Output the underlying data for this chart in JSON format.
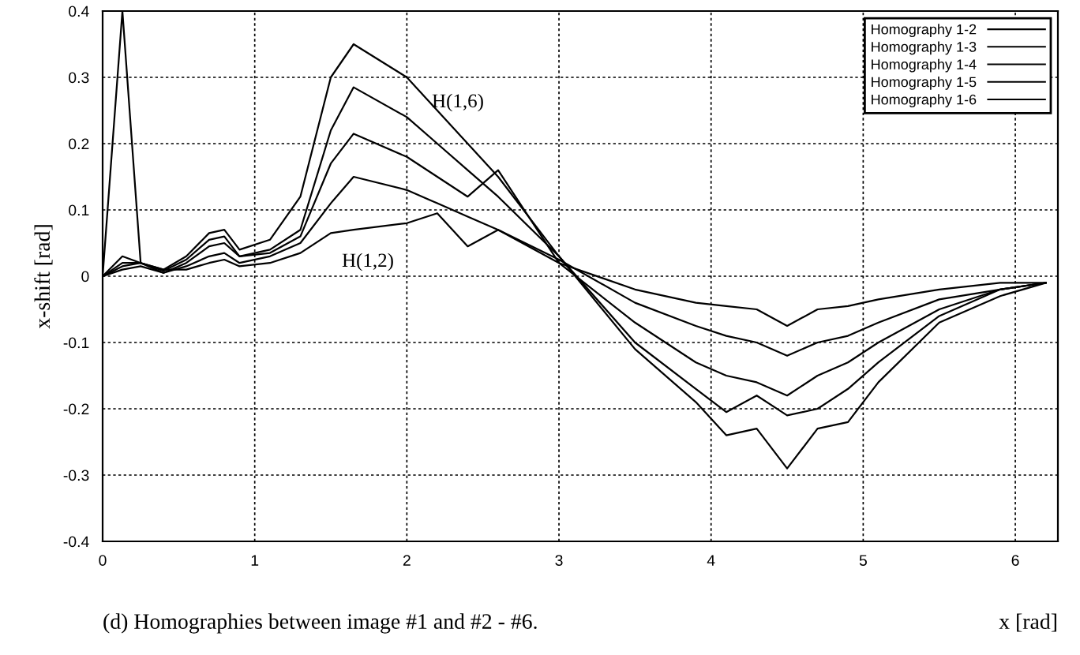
{
  "chart_data": {
    "type": "line",
    "xlabel": "x [rad]",
    "ylabel": "x-shift [rad]",
    "annotations": [
      "H(1,6)",
      "H(1,2)",
      "(d) Homographies between image #1 and #2 - #6."
    ],
    "x": [
      0,
      0.13,
      0.25,
      0.4,
      0.55,
      0.7,
      0.8,
      0.9,
      1.1,
      1.3,
      1.5,
      1.65,
      2.0,
      2.2,
      2.4,
      2.6,
      3.0,
      3.5,
      3.9,
      4.1,
      4.3,
      4.5,
      4.7,
      4.9,
      5.1,
      5.5,
      5.9,
      6.2
    ],
    "series": [
      {
        "name": "Homography 1-2",
        "color": "#000000",
        "values": [
          0,
          0.4,
          0.02,
          0.01,
          0.01,
          0.02,
          0.025,
          0.015,
          0.02,
          0.035,
          0.065,
          0.07,
          0.08,
          0.095,
          0.045,
          0.07,
          0.02,
          -0.02,
          -0.04,
          -0.045,
          -0.05,
          -0.075,
          -0.05,
          -0.045,
          -0.035,
          -0.02,
          -0.01,
          -0.01
        ]
      },
      {
        "name": "Homography 1-3",
        "color": "#000000",
        "values": [
          0,
          0.01,
          0.015,
          0.005,
          0.015,
          0.03,
          0.035,
          0.02,
          0.03,
          0.05,
          0.11,
          0.15,
          0.13,
          0.11,
          0.09,
          0.07,
          0.025,
          -0.04,
          -0.075,
          -0.09,
          -0.1,
          -0.12,
          -0.1,
          -0.09,
          -0.07,
          -0.035,
          -0.02,
          -0.01
        ]
      },
      {
        "name": "Homography 1-4",
        "color": "#000000",
        "values": [
          0,
          0.015,
          0.02,
          0.005,
          0.02,
          0.045,
          0.05,
          0.03,
          0.035,
          0.06,
          0.17,
          0.215,
          0.18,
          0.15,
          0.12,
          0.16,
          0.02,
          -0.07,
          -0.13,
          -0.15,
          -0.16,
          -0.18,
          -0.15,
          -0.13,
          -0.1,
          -0.05,
          -0.02,
          -0.01
        ]
      },
      {
        "name": "Homography 1-5",
        "color": "#000000",
        "values": [
          0,
          0.02,
          0.02,
          0.008,
          0.025,
          0.055,
          0.06,
          0.03,
          0.04,
          0.07,
          0.22,
          0.285,
          0.24,
          0.2,
          0.16,
          0.12,
          0.03,
          -0.1,
          -0.17,
          -0.205,
          -0.18,
          -0.21,
          -0.2,
          -0.17,
          -0.13,
          -0.06,
          -0.02,
          -0.01
        ]
      },
      {
        "name": "Homography 1-6",
        "color": "#000000",
        "values": [
          0,
          0.03,
          0.02,
          0.01,
          0.03,
          0.065,
          0.07,
          0.04,
          0.055,
          0.12,
          0.3,
          0.35,
          0.3,
          0.25,
          0.2,
          0.15,
          0.03,
          -0.11,
          -0.19,
          -0.24,
          -0.23,
          -0.29,
          -0.23,
          -0.22,
          -0.16,
          -0.07,
          -0.03,
          -0.01
        ]
      }
    ],
    "xlim": [
      0,
      6.28
    ],
    "ylim": [
      -0.4,
      0.4
    ],
    "xticks": [
      0,
      1,
      2,
      3,
      4,
      5,
      6
    ],
    "yticks": [
      -0.4,
      -0.3,
      -0.2,
      -0.1,
      0,
      0.1,
      0.2,
      0.3,
      0.4
    ],
    "grid": true,
    "legend": "top right",
    "line_style": "solid",
    "marker": "none"
  }
}
